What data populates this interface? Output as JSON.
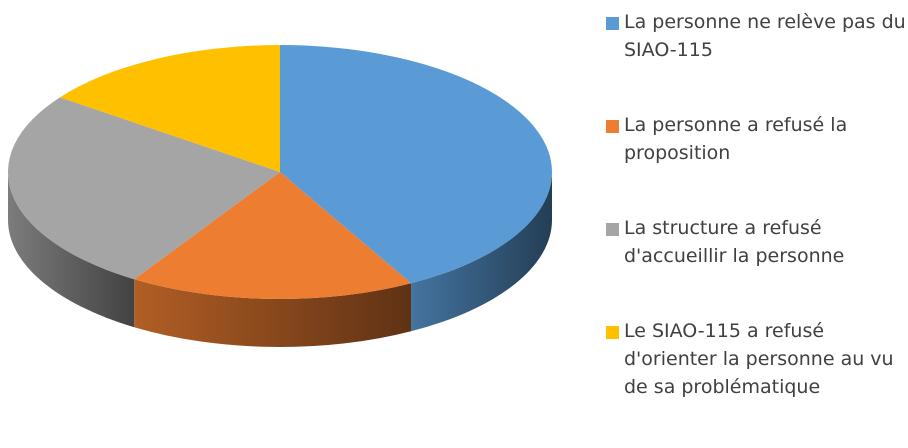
{
  "chart_data": {
    "type": "pie3d",
    "categories": [
      "La personne ne relève pas du SIAO-115",
      "La personne a refusé la proposition",
      "La structure a refusé d'accueillir la personne",
      "Le SIAO-115 a refusé d'orienter la personne au vu de sa problématique"
    ],
    "values": [
      42,
      17,
      26,
      15
    ],
    "colors": [
      "#5b9bd5",
      "#ed7d31",
      "#a5a5a5",
      "#ffc000"
    ],
    "legend": "right"
  }
}
